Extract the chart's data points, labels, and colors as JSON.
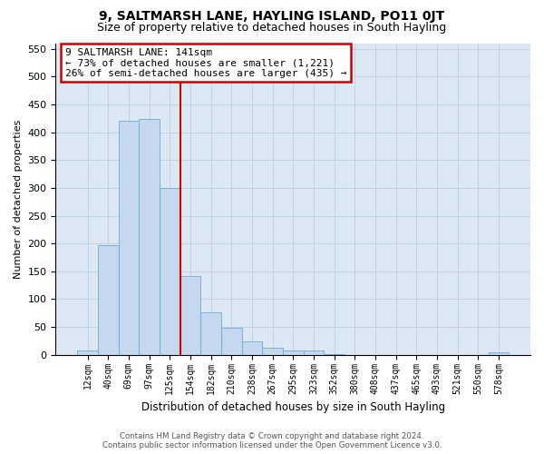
{
  "title": "9, SALTMARSH LANE, HAYLING ISLAND, PO11 0JT",
  "subtitle": "Size of property relative to detached houses in South Hayling",
  "xlabel": "Distribution of detached houses by size in South Hayling",
  "ylabel": "Number of detached properties",
  "footer_line1": "Contains HM Land Registry data © Crown copyright and database right 2024.",
  "footer_line2": "Contains public sector information licensed under the Open Government Licence v3.0.",
  "categories": [
    "12sqm",
    "40sqm",
    "69sqm",
    "97sqm",
    "125sqm",
    "154sqm",
    "182sqm",
    "210sqm",
    "238sqm",
    "267sqm",
    "295sqm",
    "323sqm",
    "352sqm",
    "380sqm",
    "408sqm",
    "437sqm",
    "465sqm",
    "493sqm",
    "521sqm",
    "550sqm",
    "578sqm"
  ],
  "values": [
    8,
    197,
    420,
    424,
    300,
    142,
    77,
    49,
    24,
    12,
    8,
    7,
    2,
    0,
    0,
    0,
    0,
    0,
    0,
    0,
    4
  ],
  "bar_color": "#c5d8f0",
  "bar_edge_color": "#6aaad4",
  "ylim": [
    0,
    560
  ],
  "yticks": [
    0,
    50,
    100,
    150,
    200,
    250,
    300,
    350,
    400,
    450,
    500,
    550
  ],
  "property_label": "9 SALTMARSH LANE: 141sqm",
  "pct_smaller": "73% of detached houses are smaller (1,221)",
  "pct_larger": "26% of semi-detached houses are larger (435)",
  "annotation_box_color": "#ffffff",
  "annotation_box_edge": "#cc0000",
  "vline_color": "#cc0000",
  "background_color": "#ffffff",
  "ax_background_color": "#dce9f5",
  "grid_color": "#b8cfe0",
  "title_fontsize": 10,
  "subtitle_fontsize": 9
}
